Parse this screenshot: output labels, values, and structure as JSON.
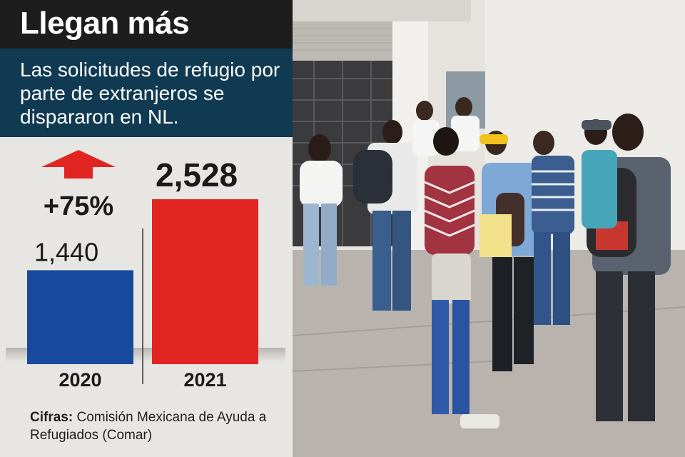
{
  "header": {
    "title": "Llegan más",
    "subtitle": "Las solicitudes de refugio por parte de extranjeros se dispararon en NL."
  },
  "chart_data": {
    "type": "bar",
    "categories": [
      "2020",
      "2021"
    ],
    "values": [
      1440,
      2528
    ],
    "value_labels": [
      "1,440",
      "2,528"
    ],
    "change_label": "+75%",
    "colors": [
      "#174a9c",
      "#e02522"
    ],
    "arrow_color": "#e02522",
    "ylim": [
      0,
      2528
    ],
    "grid": false
  },
  "source": {
    "label": "Cifras:",
    "text": "Comisión Mexicana de Ayuda a Refugiados (Comar)"
  },
  "photo": {
    "description_icon": "crowd-photo"
  }
}
